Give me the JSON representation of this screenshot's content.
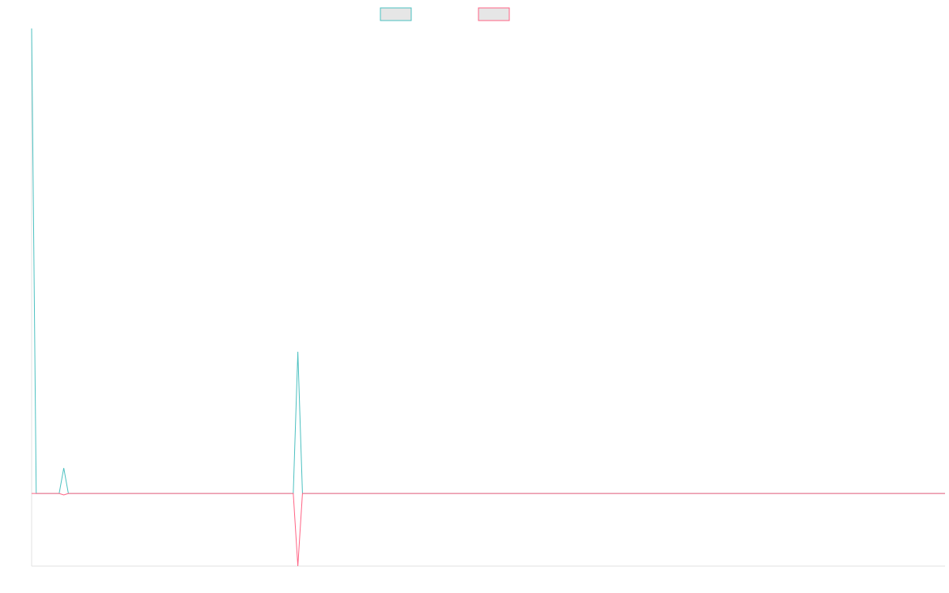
{
  "chart_data": {
    "type": "line",
    "title": "",
    "xlabel": "",
    "ylabel": "",
    "legend": {
      "position": "top-center"
    },
    "grid": false,
    "ylim": [
      -1.0,
      6.4
    ],
    "x": [
      0,
      1,
      2,
      3,
      4,
      5,
      6,
      7,
      8,
      9,
      10,
      11,
      12,
      13,
      14,
      15,
      16,
      17,
      18,
      19,
      20,
      21,
      22,
      23,
      24,
      25,
      26,
      27,
      28,
      29,
      30,
      31,
      32,
      33,
      34,
      35,
      36,
      37,
      38,
      39,
      40,
      41,
      42,
      43,
      44,
      45,
      46,
      47,
      48,
      49,
      50,
      51,
      52,
      53,
      54,
      55,
      56,
      57,
      58,
      59,
      60,
      61,
      62,
      63,
      64,
      65,
      66,
      67,
      68,
      69,
      70,
      71,
      72,
      73,
      74,
      75,
      76,
      77,
      78,
      79,
      80,
      81,
      82,
      83,
      84,
      85,
      86,
      87,
      88,
      89,
      90,
      91,
      92,
      93,
      94,
      95,
      96,
      97,
      98,
      99,
      100,
      101,
      102,
      103,
      104,
      105,
      106,
      107,
      108,
      109,
      110,
      111,
      112,
      113,
      114,
      115,
      116,
      117,
      118,
      119,
      120,
      121,
      122,
      123,
      124,
      125,
      126,
      127,
      128,
      129,
      130,
      131,
      132,
      133,
      134,
      135,
      136,
      137,
      138,
      139,
      140,
      141,
      142,
      143,
      144,
      145,
      146,
      147,
      148,
      149,
      150,
      151,
      152,
      153,
      154,
      155,
      156,
      157,
      158,
      159,
      160,
      161,
      162,
      163,
      164,
      165,
      166,
      167,
      168,
      169,
      170,
      171,
      172,
      173,
      174,
      175,
      176,
      177,
      178,
      179,
      180,
      181,
      182,
      183,
      184,
      185,
      186,
      187,
      188,
      189,
      190,
      191,
      192,
      193,
      194,
      195,
      196,
      197,
      198,
      199
    ],
    "series": [
      {
        "color": "#4bc0c0",
        "spikes": {
          "0": 6.4,
          "7": 0.35,
          "58": 1.95
        }
      },
      {
        "color": "#ff6384",
        "spikes": {
          "7": -0.02,
          "58": -1.0
        }
      }
    ]
  }
}
